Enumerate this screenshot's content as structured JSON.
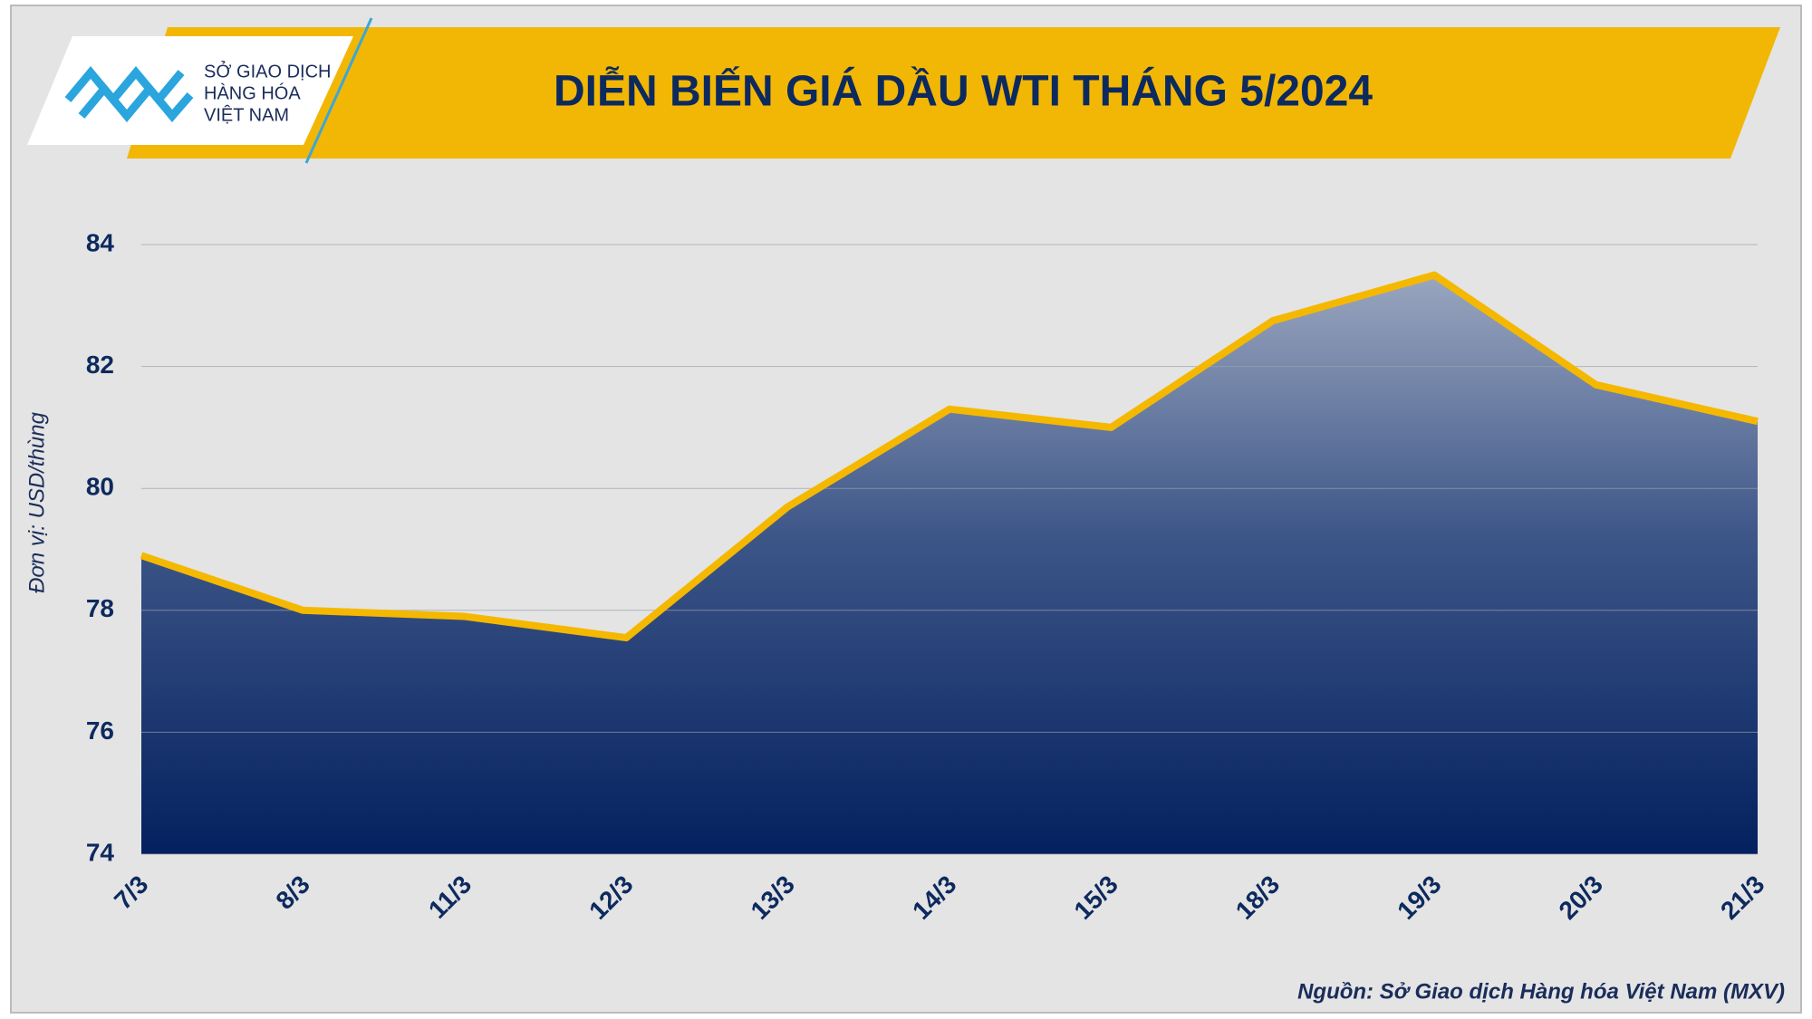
{
  "logo": [
    "SỞ GIAO DỊCH",
    "HÀNG HÓA",
    "VIỆT NAM"
  ],
  "chart_data": {
    "type": "area",
    "title": "DIỄN BIẾN GIÁ DẦU WTI THÁNG 5/2024",
    "y_label": "Đơn vị: USD/thùng",
    "source": "Nguồn: Sở Giao dịch Hàng hóa Việt Nam (MXV)",
    "categories": [
      "7/3",
      "8/3",
      "11/3",
      "12/3",
      "13/3",
      "14/3",
      "15/3",
      "18/3",
      "19/3",
      "20/3",
      "21/3"
    ],
    "values": [
      78.9,
      78.0,
      77.9,
      77.55,
      79.7,
      81.3,
      81.0,
      82.75,
      83.5,
      81.7,
      81.1
    ],
    "color": "#f5b800",
    "ylim": [
      74,
      84
    ],
    "yticks": [
      74,
      76,
      78,
      80,
      82,
      84
    ],
    "grid": true
  }
}
